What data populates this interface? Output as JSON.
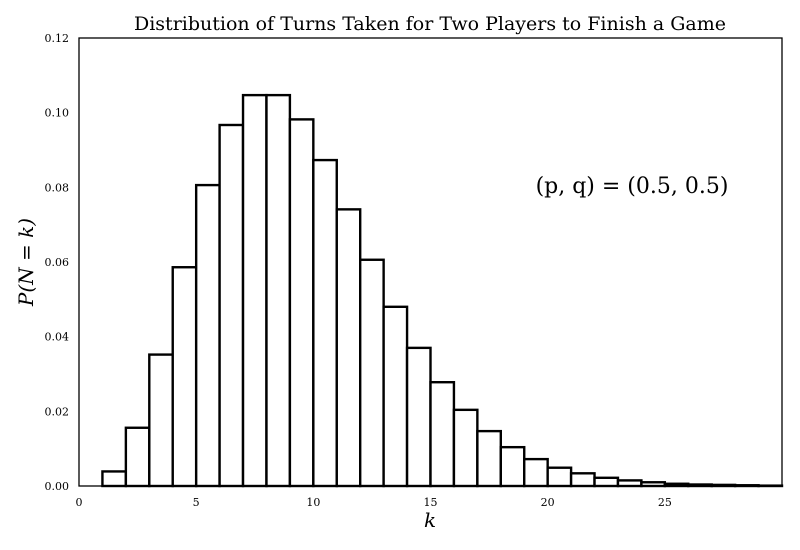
{
  "chart_data": {
    "type": "bar",
    "title": "Distribution of Turns Taken for Two Players to Finish a Game",
    "xlabel": "k",
    "ylabel": "P(N = k)",
    "annotation": "(p, q) = (0.5, 0.5)",
    "xlim": [
      0,
      30
    ],
    "ylim": [
      0,
      0.12
    ],
    "xticks": [
      0,
      5,
      10,
      15,
      20,
      25
    ],
    "xtick_labels": [
      "0",
      "5",
      "10",
      "15",
      "20",
      "25"
    ],
    "yticks": [
      0,
      0.02,
      0.04,
      0.06,
      0.08,
      0.1,
      0.12
    ],
    "ytick_labels": [
      "0.00",
      "0.02",
      "0.04",
      "0.06",
      "0.08",
      "0.10",
      "0.12"
    ],
    "bar_width": 1,
    "x": [
      1,
      2,
      3,
      4,
      5,
      6,
      7,
      8,
      9,
      10,
      11,
      12,
      13,
      14,
      15,
      16,
      17,
      18,
      19,
      20,
      21,
      22,
      23,
      24,
      25,
      26,
      27,
      28,
      29
    ],
    "values": [
      0.0039,
      0.0156,
      0.0352,
      0.0586,
      0.0806,
      0.0967,
      0.1047,
      0.1047,
      0.0982,
      0.0873,
      0.0741,
      0.0606,
      0.048,
      0.037,
      0.0278,
      0.0204,
      0.0147,
      0.0104,
      0.0072,
      0.0049,
      0.0034,
      0.0022,
      0.0015,
      0.001,
      0.0006,
      0.0004,
      0.0003,
      0.0002,
      0.0001
    ],
    "fill_color": "#ffffff",
    "edge_color": "#000000",
    "grid": false
  }
}
